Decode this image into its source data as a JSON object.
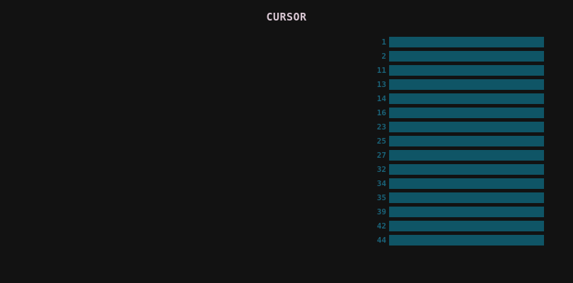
{
  "title": "CURSOR",
  "bar_color": "#0f5566",
  "label_color": "#1a6278",
  "rows": [
    "1",
    "2",
    "11",
    "13",
    "14",
    "16",
    "23",
    "25",
    "27",
    "32",
    "34",
    "35",
    "39",
    "42",
    "44"
  ]
}
